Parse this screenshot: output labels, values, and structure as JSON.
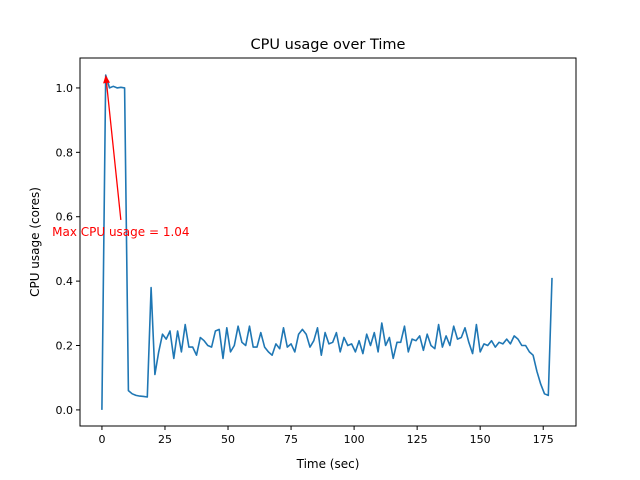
{
  "chart_data": {
    "type": "line",
    "title": "CPU usage over Time",
    "xlabel": "Time (sec)",
    "ylabel": "CPU usage (cores)",
    "xlim": [
      -8.7,
      188
    ],
    "ylim": [
      -0.05,
      1.093
    ],
    "xticks": [
      0,
      25,
      50,
      75,
      100,
      125,
      150,
      175
    ],
    "xtick_labels": [
      "0",
      "25",
      "50",
      "75",
      "100",
      "125",
      "150",
      "175"
    ],
    "yticks": [
      0.0,
      0.2,
      0.4,
      0.6,
      0.8,
      1.0
    ],
    "ytick_labels": [
      "0.0",
      "0.2",
      "0.4",
      "0.6",
      "0.8",
      "1.0"
    ],
    "grid": false,
    "line_color": "#1f77b4",
    "series": [
      {
        "x": [
          0,
          1.5,
          3,
          4.5,
          6,
          7.5,
          9,
          10.5,
          12,
          13.5,
          15,
          16.5,
          18,
          19.5,
          21,
          22.5,
          24,
          25.5,
          27,
          28.5,
          30,
          31.5,
          33,
          34.5,
          36,
          37.5,
          39,
          40.5,
          42,
          43.5,
          45,
          46.5,
          48,
          49.5,
          51,
          52.5,
          54,
          55.5,
          57,
          58.5,
          60,
          61.5,
          63,
          64.5,
          66,
          67.5,
          69,
          70.5,
          72,
          73.5,
          75,
          76.5,
          78,
          79.5,
          81,
          82.5,
          84,
          85.5,
          87,
          88.5,
          90,
          91.5,
          93,
          94.5,
          96,
          97.5,
          99,
          100.5,
          102,
          103.5,
          105,
          106.5,
          108,
          109.5,
          111,
          112.5,
          114,
          115.5,
          117,
          118.5,
          120,
          121.5,
          123,
          124.5,
          126,
          127.5,
          129,
          130.5,
          132,
          133.5,
          135,
          136.5,
          138,
          139.5,
          141,
          142.5,
          144,
          145.5,
          147,
          148.5,
          150,
          151.5,
          153,
          154.5,
          156,
          157.5,
          159,
          160.5,
          162,
          163.5,
          165,
          166.5,
          168,
          169.5,
          171,
          172.5,
          174,
          175.5,
          177,
          178.5
        ],
        "y": [
          0,
          1.04,
          1.0,
          1.005,
          1.0,
          1.002,
          1.0,
          0.06,
          0.05,
          0.045,
          0.043,
          0.042,
          0.04,
          0.38,
          0.11,
          0.18,
          0.235,
          0.22,
          0.245,
          0.16,
          0.245,
          0.18,
          0.265,
          0.195,
          0.195,
          0.17,
          0.225,
          0.215,
          0.2,
          0.195,
          0.245,
          0.25,
          0.16,
          0.255,
          0.18,
          0.2,
          0.26,
          0.21,
          0.2,
          0.26,
          0.195,
          0.195,
          0.24,
          0.195,
          0.18,
          0.17,
          0.205,
          0.19,
          0.255,
          0.195,
          0.205,
          0.18,
          0.235,
          0.25,
          0.235,
          0.195,
          0.215,
          0.255,
          0.17,
          0.24,
          0.205,
          0.21,
          0.24,
          0.18,
          0.225,
          0.2,
          0.205,
          0.18,
          0.215,
          0.175,
          0.235,
          0.2,
          0.24,
          0.18,
          0.27,
          0.2,
          0.225,
          0.16,
          0.21,
          0.21,
          0.26,
          0.18,
          0.22,
          0.215,
          0.23,
          0.185,
          0.235,
          0.2,
          0.19,
          0.265,
          0.195,
          0.23,
          0.2,
          0.26,
          0.22,
          0.225,
          0.255,
          0.21,
          0.175,
          0.265,
          0.18,
          0.205,
          0.2,
          0.215,
          0.195,
          0.21,
          0.205,
          0.22,
          0.205,
          0.23,
          0.22,
          0.2,
          0.2,
          0.18,
          0.17,
          0.12,
          0.08,
          0.05,
          0.045,
          0.41
        ]
      }
    ],
    "annotation": {
      "text": "Max CPU usage = 1.04",
      "color": "#ff0000",
      "point": [
        1.5,
        1.04
      ],
      "text_position": [
        7.5,
        0.59
      ]
    }
  }
}
